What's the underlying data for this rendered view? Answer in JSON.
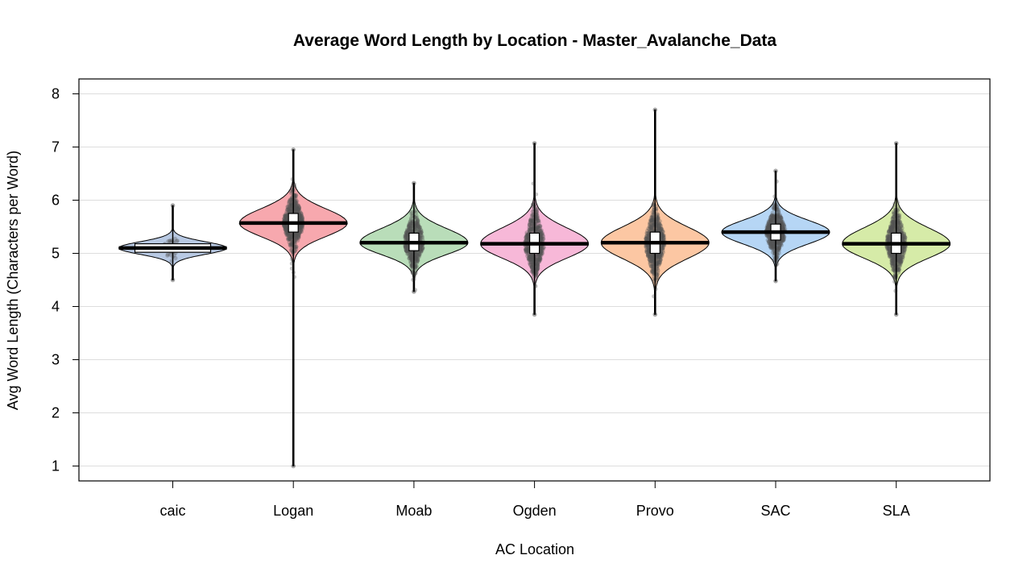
{
  "chart_data": {
    "type": "violin",
    "title": "Average Word Length by Location - Master_Avalanche_Data",
    "xlabel": "AC Location",
    "ylabel": "Avg Word Length (Characters per Word)",
    "ylim": [
      0.72,
      8.28
    ],
    "yticks": [
      1,
      2,
      3,
      4,
      5,
      6,
      7,
      8
    ],
    "grid": "horizontal",
    "categories": [
      "caic",
      "Logan",
      "Moab",
      "Ogden",
      "Provo",
      "SAC",
      "SLA"
    ],
    "series": [
      {
        "category": "caic",
        "color": "#b8c9e3",
        "min": 4.5,
        "max": 5.9,
        "median": 5.1,
        "q1": 5.02,
        "q3": 5.18,
        "n_points": 40
      },
      {
        "category": "Logan",
        "color": "#f7a8ae",
        "min": 1.0,
        "max": 6.95,
        "median": 5.57,
        "q1": 5.4,
        "q3": 5.75,
        "n_points": 600
      },
      {
        "category": "Moab",
        "color": "#b9ddb9",
        "min": 4.28,
        "max": 6.32,
        "median": 5.2,
        "q1": 5.05,
        "q3": 5.38,
        "n_points": 500
      },
      {
        "category": "Ogden",
        "color": "#f7b8d8",
        "min": 3.85,
        "max": 7.07,
        "median": 5.18,
        "q1": 5.0,
        "q3": 5.38,
        "n_points": 600
      },
      {
        "category": "Provo",
        "color": "#fcc7a3",
        "min": 3.85,
        "max": 7.7,
        "median": 5.2,
        "q1": 5.0,
        "q3": 5.4,
        "n_points": 600
      },
      {
        "category": "SAC",
        "color": "#b6d6f5",
        "min": 4.48,
        "max": 6.55,
        "median": 5.4,
        "q1": 5.25,
        "q3": 5.55,
        "n_points": 500
      },
      {
        "category": "SLA",
        "color": "#d6eba8",
        "min": 3.85,
        "max": 7.07,
        "median": 5.18,
        "q1": 5.0,
        "q3": 5.38,
        "n_points": 600
      }
    ]
  }
}
